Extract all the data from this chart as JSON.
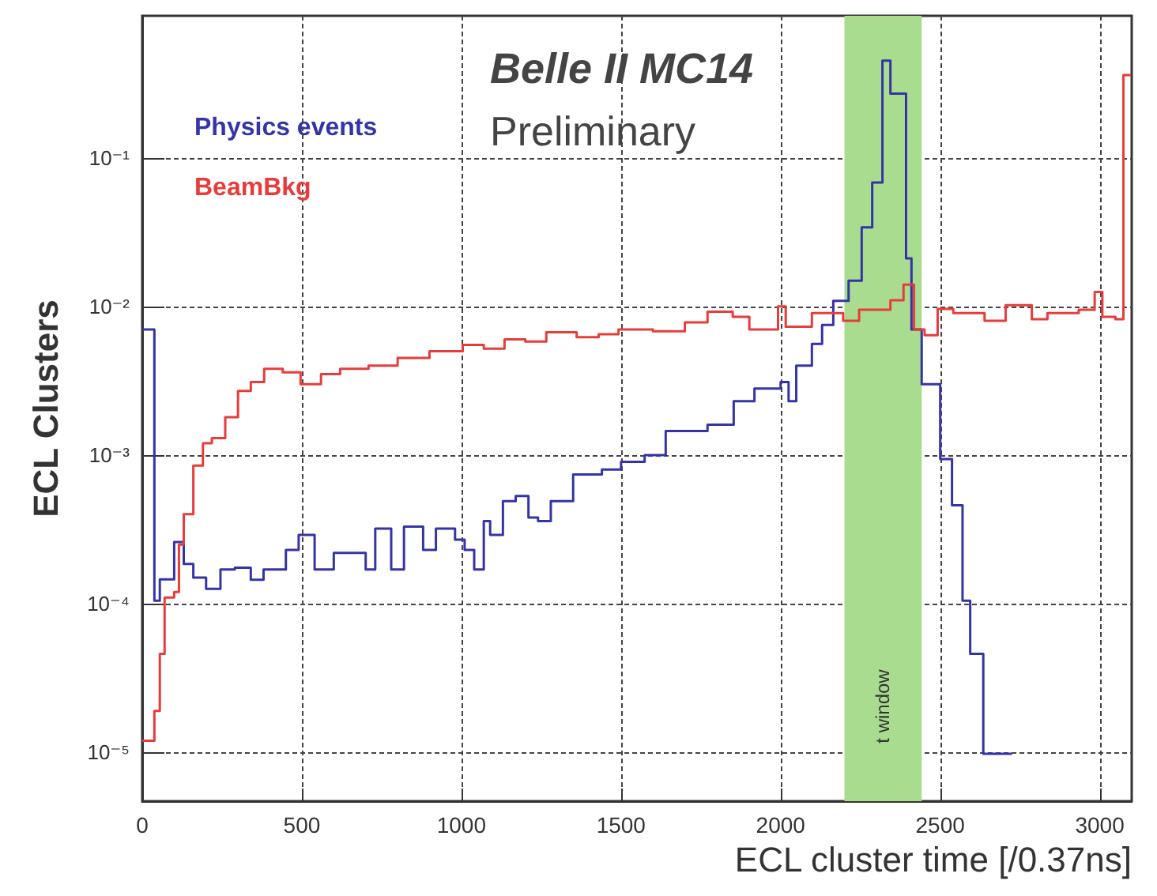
{
  "chart_data": {
    "type": "step",
    "xlabel": "ECL cluster time [/0.37ns]",
    "ylabel": "ECL Clusters",
    "annotations": [
      "Belle II MC14",
      "Preliminary",
      "t window"
    ],
    "xlim": [
      0,
      3100
    ],
    "xticks": [
      0,
      500,
      1000,
      1500,
      2000,
      2500,
      3000
    ],
    "ylim": [
      4.7e-06,
      0.9
    ],
    "log": "y",
    "yticks": [
      {
        "value": 0.1,
        "label": "10⁻¹"
      },
      {
        "value": 0.01,
        "label": "10⁻²"
      },
      {
        "value": 0.001,
        "label": "10⁻³"
      },
      {
        "value": 0.0001,
        "label": "10⁻⁴"
      },
      {
        "value": 1e-05,
        "label": "10⁻⁵"
      }
    ],
    "grid": true,
    "legend": "top left",
    "bands": [
      {
        "axis": "x",
        "from": 2200,
        "to": 2442,
        "color": "#a9dc8f"
      }
    ],
    "series": [
      {
        "name": "Physics events",
        "color": "#3434a8",
        "x": [
          0,
          38,
          55,
          100,
          130,
          160,
          200,
          245,
          290,
          340,
          380,
          450,
          490,
          540,
          600,
          700,
          730,
          780,
          820,
          880,
          920,
          980,
          1010,
          1040,
          1070,
          1090,
          1130,
          1170,
          1210,
          1240,
          1280,
          1350,
          1440,
          1500,
          1574,
          1640,
          1771,
          1853,
          1918,
          2000,
          2025,
          2049,
          2098,
          2130,
          2165,
          2213,
          2254,
          2287,
          2319,
          2344,
          2393,
          2410,
          2442,
          2500,
          2537,
          2570,
          2594,
          2635,
          2725
        ],
        "values": [
          0.007,
          0.000105,
          0.000146,
          0.00026,
          0.000185,
          0.00015,
          0.000126,
          0.00017,
          0.000175,
          0.000145,
          0.00017,
          0.00023,
          0.00029,
          0.00017,
          0.00022,
          0.00017,
          0.00032,
          0.00017,
          0.00033,
          0.00023,
          0.00032,
          0.00027,
          0.00023,
          0.00017,
          0.00036,
          0.00029,
          0.00049,
          0.00053,
          0.00038,
          0.00036,
          0.00049,
          0.00074,
          0.0008,
          0.0009,
          0.001,
          0.00145,
          0.0016,
          0.0023,
          0.0028,
          0.0031,
          0.0023,
          0.004,
          0.0056,
          0.0075,
          0.0109,
          0.0149,
          0.034,
          0.068,
          0.45,
          0.27,
          0.021,
          0.007,
          0.003,
          0.00094,
          0.00046,
          0.000105,
          4.6e-05,
          9.8e-06,
          9.8e-06
        ]
      },
      {
        "name": "BeamBkg",
        "color": "#e83c3c",
        "x": [
          0,
          38,
          55,
          70,
          100,
          115,
          130,
          160,
          190,
          218,
          260,
          300,
          340,
          382,
          440,
          496,
          560,
          620,
          709,
          800,
          900,
          1004,
          1070,
          1135,
          1200,
          1266,
          1361,
          1430,
          1492,
          1600,
          1700,
          1771,
          1850,
          1902,
          1992,
          2016,
          2098,
          2196,
          2246,
          2344,
          2385,
          2418,
          2451,
          2492,
          2541,
          2639,
          2705,
          2787,
          2836,
          2934,
          2984,
          3008,
          3049,
          3074,
          3098
        ],
        "values": [
          1.2e-05,
          1.9e-05,
          4.6e-05,
          0.00011,
          0.00012,
          0.00025,
          0.0004,
          0.00085,
          0.0012,
          0.0013,
          0.0018,
          0.0027,
          0.0031,
          0.0038,
          0.0036,
          0.003,
          0.0035,
          0.0038,
          0.004,
          0.0045,
          0.005,
          0.0055,
          0.0052,
          0.006,
          0.0058,
          0.0067,
          0.0062,
          0.0065,
          0.007,
          0.0068,
          0.0078,
          0.0092,
          0.0085,
          0.007,
          0.01,
          0.0073,
          0.009,
          0.008,
          0.0095,
          0.011,
          0.014,
          0.007,
          0.0064,
          0.0096,
          0.009,
          0.008,
          0.0102,
          0.0082,
          0.009,
          0.0095,
          0.0125,
          0.0085,
          0.0082,
          0.36,
          0.36
        ]
      }
    ]
  }
}
